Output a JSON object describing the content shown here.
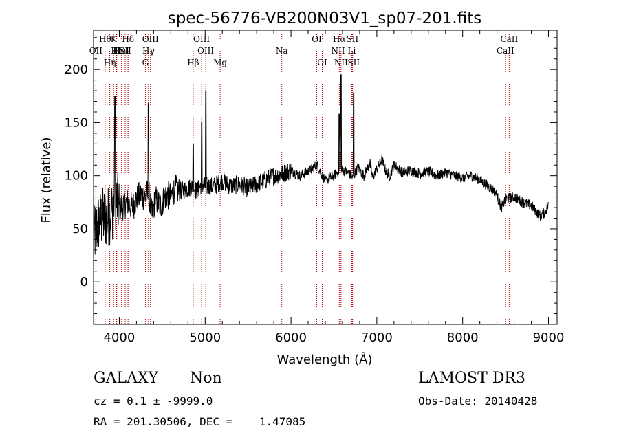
{
  "chart_data": {
    "type": "line",
    "title": "spec-56776-VB200N03V1_sp07-201.fits",
    "xlabel": "Wavelength (Å)",
    "ylabel": "Flux (relative)",
    "xlim": [
      3700,
      9100
    ],
    "ylim": [
      -40,
      237
    ],
    "xticks": [
      4000,
      5000,
      6000,
      7000,
      8000,
      9000
    ],
    "yticks": [
      0,
      50,
      100,
      150,
      200
    ],
    "series": [
      {
        "name": "flux",
        "x": [
          3700,
          3750,
          3800,
          3850,
          3900,
          3930,
          3950,
          3970,
          4000,
          4050,
          4100,
          4150,
          4200,
          4250,
          4300,
          4340,
          4380,
          4420,
          4480,
          4550,
          4600,
          4650,
          4700,
          4800,
          4861,
          4900,
          4959,
          5007,
          5100,
          5200,
          5300,
          5400,
          5500,
          5600,
          5700,
          5800,
          5900,
          6000,
          6100,
          6200,
          6300,
          6400,
          6500,
          6563,
          6650,
          6720,
          6780,
          6850,
          6920,
          6950,
          6990,
          7060,
          7100,
          7150,
          7200,
          7300,
          7400,
          7500,
          7600,
          7700,
          7800,
          7900,
          8000,
          8100,
          8200,
          8300,
          8380,
          8450,
          8500,
          8600,
          8700,
          8800,
          8900,
          8950,
          9000
        ],
        "y": [
          40,
          55,
          60,
          60,
          65,
          70,
          80,
          75,
          70,
          72,
          75,
          70,
          78,
          82,
          80,
          85,
          62,
          78,
          72,
          82,
          80,
          88,
          85,
          88,
          90,
          85,
          92,
          90,
          90,
          95,
          90,
          92,
          88,
          92,
          96,
          100,
          102,
          105,
          100,
          104,
          110,
          95,
          100,
          105,
          104,
          98,
          108,
          100,
          112,
          98,
          105,
          115,
          105,
          100,
          110,
          103,
          105,
          102,
          104,
          100,
          103,
          100,
          98,
          100,
          96,
          90,
          85,
          70,
          78,
          80,
          75,
          72,
          62,
          65,
          72
        ]
      }
    ],
    "spikes": [
      {
        "x": 3950,
        "y": 175
      },
      {
        "x": 4340,
        "y": 168
      },
      {
        "x": 4861,
        "y": 130
      },
      {
        "x": 4959,
        "y": 150
      },
      {
        "x": 5007,
        "y": 180
      },
      {
        "x": 6563,
        "y": 158
      },
      {
        "x": 6583,
        "y": 195
      },
      {
        "x": 6731,
        "y": 178
      }
    ],
    "lines": [
      {
        "x": 3934,
        "label": "K",
        "row": 0
      },
      {
        "x": 3968,
        "label": "H",
        "row": 1
      },
      {
        "x": 3727,
        "label": "OII",
        "row": 1
      },
      {
        "x": 3835,
        "label": "Hθ",
        "row": 0
      },
      {
        "x": 3889,
        "label": "Hη",
        "row": 2
      },
      {
        "x": 3970,
        "label": "Hε",
        "row": 1
      },
      {
        "x": 4102,
        "label": "Hδ",
        "row": 0
      },
      {
        "x": 4026,
        "label": "HeI",
        "row": 1
      },
      {
        "x": 4069,
        "label": "SII",
        "row": 1
      },
      {
        "x": 4304,
        "label": "G",
        "row": 2
      },
      {
        "x": 4340,
        "label": "Hγ",
        "row": 1
      },
      {
        "x": 4363,
        "label": "OIII",
        "row": 0
      },
      {
        "x": 4861,
        "label": "Hβ",
        "row": 2
      },
      {
        "x": 4959,
        "label": "OIII",
        "row": 0
      },
      {
        "x": 5007,
        "label": "OIII",
        "row": 1
      },
      {
        "x": 5175,
        "label": "Mg",
        "row": 2
      },
      {
        "x": 5893,
        "label": "Na",
        "row": 1
      },
      {
        "x": 6300,
        "label": "OI",
        "row": 0
      },
      {
        "x": 6364,
        "label": "OI",
        "row": 2
      },
      {
        "x": 6548,
        "label": "NII",
        "row": 1
      },
      {
        "x": 6563,
        "label": "Hα",
        "row": 0
      },
      {
        "x": 6583,
        "label": "NII",
        "row": 2
      },
      {
        "x": 6716,
        "label": "SII",
        "row": 0
      },
      {
        "x": 6731,
        "label": "SII",
        "row": 2
      },
      {
        "x": 6708,
        "label": "Li",
        "row": 1
      },
      {
        "x": 8498,
        "label": "CaII",
        "row": 1
      },
      {
        "x": 8542,
        "label": "CaII",
        "row": 0
      }
    ]
  },
  "info": {
    "object_class": "GALAXY",
    "subclass": "Non",
    "cz_line": "cz = 0.1 ± -9999.0",
    "coords_line": "RA = 201.30506, DEC =    1.47085",
    "survey": "LAMOST DR3",
    "obs_date": "Obs-Date: 20140428"
  }
}
